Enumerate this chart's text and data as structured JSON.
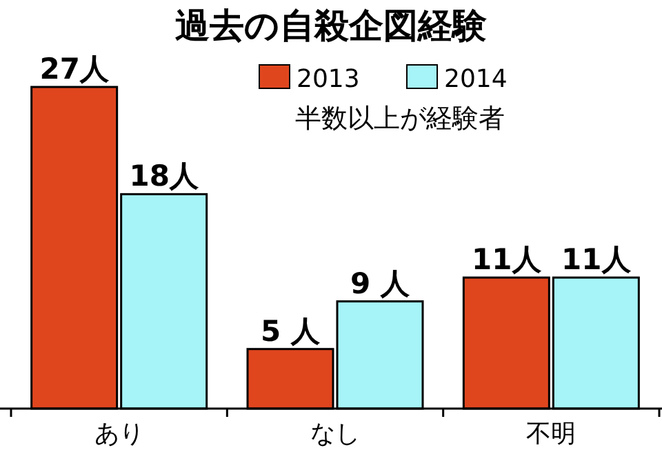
{
  "chart_data": {
    "type": "bar",
    "title": "過去の自殺企図経験",
    "subtitle": "半数以上が経験者",
    "categories": [
      "あり",
      "なし",
      "不明"
    ],
    "series": [
      {
        "name": "2013",
        "color": "#e0461e",
        "values": [
          27,
          5,
          11
        ],
        "value_labels": [
          "27人",
          "5 人",
          "11人"
        ]
      },
      {
        "name": "2014",
        "color": "#a6f4f8",
        "values": [
          18,
          9,
          11
        ],
        "value_labels": [
          "18人",
          "9 人",
          "11人"
        ]
      }
    ],
    "legend": "top"
  }
}
